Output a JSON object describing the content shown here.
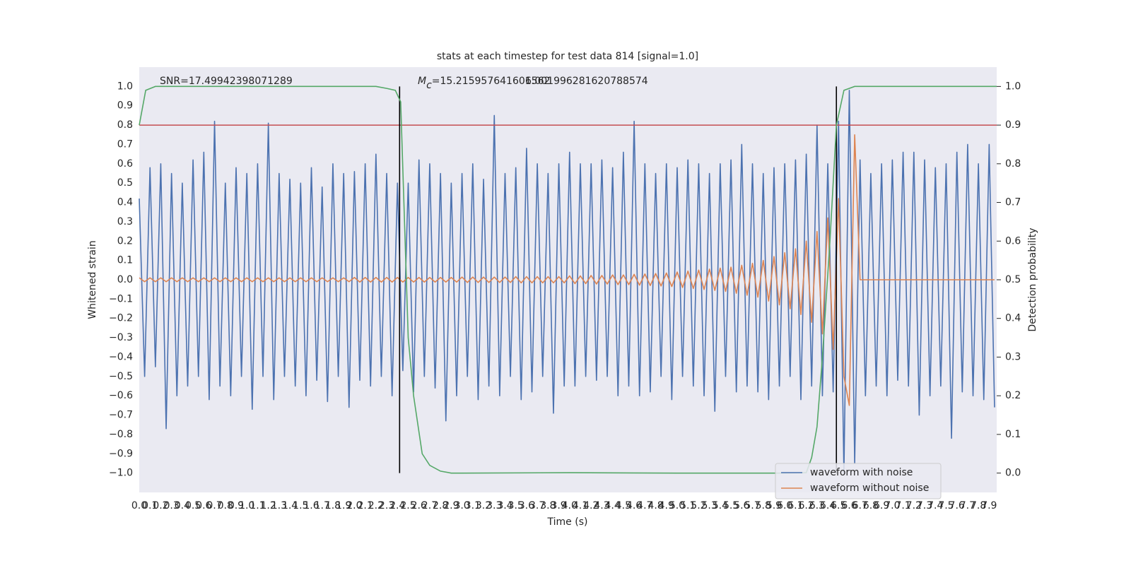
{
  "chart_data": {
    "type": "line",
    "title": "stats at each timestep for test data 814 [signal=1.0]",
    "xlabel": "Time (s)",
    "ylabel": "Whitened strain",
    "y2label": "Detection probability",
    "annotations": [
      {
        "text": "SNR=17.49942398071289"
      },
      {
        "symbol": "M",
        "subscript": "c",
        "text": "=15.215957641601562"
      },
      {
        "text": "6.001996281620788574"
      }
    ],
    "xlim": [
      0,
      7.97
    ],
    "ylim": [
      -1.1,
      1.1
    ],
    "y2lim": [
      -0.05,
      1.05
    ],
    "grid": true,
    "legend": "lower right",
    "xticks": [
      {
        "value": 0,
        "label": "0.0"
      },
      0.1,
      0.2,
      0.3,
      0.4,
      0.5,
      0.6,
      0.7,
      0.8,
      0.9,
      {
        "value": 1,
        "label": "1.0"
      },
      1.1,
      1.2,
      1.3,
      1.4,
      1.5,
      1.6,
      1.7,
      1.8,
      1.9,
      {
        "value": 2,
        "label": "2.0"
      },
      2.1,
      2.2,
      2.3,
      2.4,
      2.5,
      2.6,
      2.7,
      2.8,
      2.9,
      {
        "value": 3,
        "label": "3.0"
      },
      3.1,
      3.2,
      3.3,
      3.4,
      3.5,
      3.6,
      3.7,
      3.8,
      3.9,
      {
        "value": 4,
        "label": "4.0"
      },
      4.1,
      4.2,
      4.3,
      4.4,
      4.5,
      4.6,
      4.7,
      4.8,
      4.9,
      {
        "value": 5,
        "label": "5.0"
      },
      5.1,
      5.2,
      5.3,
      5.4,
      5.5,
      5.6,
      5.7,
      5.8,
      5.9,
      {
        "value": 6,
        "label": "6.0"
      },
      6.1,
      6.2,
      6.3,
      6.4,
      6.5,
      6.6,
      6.7,
      6.8,
      6.9,
      {
        "value": 7,
        "label": "7.0"
      },
      7.1,
      7.2,
      7.3,
      7.4,
      7.5,
      7.6,
      7.7,
      7.8,
      7.9
    ],
    "yticks": [
      {
        "value": -1,
        "label": "−1.0"
      },
      {
        "value": -0.9,
        "label": "−0.9"
      },
      {
        "value": -0.8,
        "label": "−0.8"
      },
      {
        "value": -0.7,
        "label": "−0.7"
      },
      {
        "value": -0.6,
        "label": "−0.6"
      },
      {
        "value": -0.5,
        "label": "−0.5"
      },
      {
        "value": -0.4,
        "label": "−0.4"
      },
      {
        "value": -0.3,
        "label": "−0.3"
      },
      {
        "value": -0.2,
        "label": "−0.2"
      },
      {
        "value": -0.1,
        "label": "−0.1"
      },
      {
        "value": 0,
        "label": "0.0"
      },
      0.1,
      0.2,
      0.3,
      0.4,
      0.5,
      0.6,
      0.7,
      0.8,
      0.9,
      {
        "value": 1,
        "label": "1.0"
      }
    ],
    "y2ticks": [
      {
        "value": 0,
        "label": "0.0"
      },
      0.1,
      0.2,
      0.3,
      0.4,
      0.5,
      0.6,
      0.7,
      0.8,
      0.9,
      {
        "value": 1,
        "label": "1.0"
      }
    ],
    "x": [
      0,
      0.05,
      0.1,
      0.15,
      0.2,
      0.25,
      0.3,
      0.35,
      0.4,
      0.45,
      0.5,
      0.55,
      0.6,
      0.65,
      0.7,
      0.75,
      0.8,
      0.85,
      0.9,
      0.95,
      1,
      1.05,
      1.1,
      1.15,
      1.2,
      1.25,
      1.3,
      1.35,
      1.4,
      1.45,
      1.5,
      1.55,
      1.6,
      1.65,
      1.7,
      1.75,
      1.8,
      1.85,
      1.9,
      1.95,
      2,
      2.05,
      2.1,
      2.15,
      2.2,
      2.25,
      2.3,
      2.35,
      2.4,
      2.45,
      2.5,
      2.55,
      2.6,
      2.65,
      2.7,
      2.75,
      2.8,
      2.85,
      2.9,
      2.95,
      3,
      3.05,
      3.1,
      3.15,
      3.2,
      3.25,
      3.3,
      3.35,
      3.4,
      3.45,
      3.5,
      3.55,
      3.6,
      3.65,
      3.7,
      3.75,
      3.8,
      3.85,
      3.9,
      3.95,
      4,
      4.05,
      4.1,
      4.15,
      4.2,
      4.25,
      4.3,
      4.35,
      4.4,
      4.45,
      4.5,
      4.55,
      4.6,
      4.65,
      4.7,
      4.75,
      4.8,
      4.85,
      4.9,
      4.95,
      5,
      5.05,
      5.1,
      5.15,
      5.2,
      5.25,
      5.3,
      5.35,
      5.4,
      5.45,
      5.5,
      5.55,
      5.6,
      5.65,
      5.7,
      5.75,
      5.8,
      5.85,
      5.9,
      5.95,
      6,
      6.05,
      6.1,
      6.15,
      6.2,
      6.25,
      6.3,
      6.35,
      6.4,
      6.45,
      6.5,
      6.55,
      6.6,
      6.65,
      6.7,
      6.75,
      6.8,
      6.85,
      6.9,
      6.95,
      7,
      7.05,
      7.1,
      7.15,
      7.2,
      7.25,
      7.3,
      7.35,
      7.4,
      7.45,
      7.5,
      7.55,
      7.6,
      7.65,
      7.7,
      7.75,
      7.8,
      7.85,
      7.9,
      7.95
    ],
    "series": [
      {
        "name": "waveform with noise",
        "color": "#4c72b0",
        "values": [
          0.42,
          -0.5,
          0.58,
          -0.45,
          0.6,
          -0.77,
          0.55,
          -0.6,
          0.5,
          -0.55,
          0.62,
          -0.5,
          0.66,
          -0.62,
          0.82,
          -0.55,
          0.5,
          -0.6,
          0.58,
          -0.5,
          0.55,
          -0.67,
          0.6,
          -0.5,
          0.81,
          -0.62,
          0.55,
          -0.5,
          0.52,
          -0.55,
          0.5,
          -0.6,
          0.58,
          -0.52,
          0.48,
          -0.63,
          0.6,
          -0.5,
          0.55,
          -0.66,
          0.56,
          -0.52,
          0.6,
          -0.55,
          0.65,
          -0.5,
          0.55,
          -0.6,
          0.5,
          -0.47,
          0.5,
          -0.58,
          0.62,
          -0.5,
          0.6,
          -0.56,
          0.55,
          -0.73,
          0.5,
          -0.6,
          0.55,
          -0.5,
          0.6,
          -0.62,
          0.52,
          -0.55,
          0.85,
          -0.6,
          0.55,
          -0.5,
          0.58,
          -0.62,
          0.68,
          -0.58,
          0.6,
          -0.5,
          0.55,
          -0.69,
          0.6,
          -0.55,
          0.66,
          -0.55,
          0.6,
          -0.5,
          0.6,
          -0.52,
          0.62,
          -0.5,
          0.58,
          -0.6,
          0.66,
          -0.55,
          0.82,
          -0.6,
          0.6,
          -0.58,
          0.55,
          -0.5,
          0.6,
          -0.62,
          0.58,
          -0.5,
          0.62,
          -0.55,
          0.6,
          -0.6,
          0.55,
          -0.68,
          0.6,
          -0.5,
          0.62,
          -0.58,
          0.7,
          -0.55,
          0.6,
          -0.58,
          0.55,
          -0.62,
          0.58,
          -0.55,
          0.6,
          -0.5,
          0.62,
          -0.62,
          0.65,
          -0.55,
          0.8,
          -0.6,
          0.6,
          -0.58,
          0.82,
          -1.0,
          0.98,
          -0.95,
          0.62,
          -0.6,
          0.55,
          -0.55,
          0.6,
          -0.6,
          0.62,
          -0.52,
          0.66,
          -0.55,
          0.66,
          -0.7,
          0.62,
          -0.6,
          0.58,
          -0.55,
          0.6,
          -0.82,
          0.66,
          -0.58,
          0.7,
          -0.6,
          0.6,
          -0.62,
          0.7,
          -0.66
        ]
      },
      {
        "name": "waveform without noise",
        "color": "#dd8452",
        "values": [
          0.01,
          -0.01,
          0.01,
          -0.01,
          0.01,
          -0.01,
          0.01,
          -0.01,
          0.01,
          -0.01,
          0.01,
          -0.01,
          0.01,
          -0.01,
          0.01,
          -0.01,
          0.01,
          -0.01,
          0.01,
          -0.01,
          0.01,
          -0.01,
          0.01,
          -0.01,
          0.01,
          -0.01,
          0.01,
          -0.01,
          0.01,
          -0.01,
          0.01,
          -0.01,
          0.01,
          -0.01,
          0.01,
          -0.01,
          0.01,
          -0.01,
          0.01,
          -0.01,
          0.012,
          -0.012,
          0.012,
          -0.012,
          0.012,
          -0.012,
          0.012,
          -0.012,
          0.012,
          -0.012,
          0.012,
          -0.012,
          0.012,
          -0.012,
          0.012,
          -0.012,
          0.012,
          -0.012,
          0.012,
          -0.012,
          0.014,
          -0.014,
          0.014,
          -0.014,
          0.014,
          -0.014,
          0.014,
          -0.014,
          0.014,
          -0.014,
          0.016,
          -0.016,
          0.016,
          -0.016,
          0.016,
          -0.016,
          0.016,
          -0.016,
          0.016,
          -0.016,
          0.02,
          -0.02,
          0.02,
          -0.02,
          0.022,
          -0.022,
          0.022,
          -0.022,
          0.025,
          -0.025,
          0.025,
          -0.025,
          0.028,
          -0.028,
          0.03,
          -0.03,
          0.032,
          -0.032,
          0.035,
          -0.035,
          0.04,
          -0.04,
          0.045,
          -0.045,
          0.05,
          -0.05,
          0.055,
          -0.055,
          0.06,
          -0.06,
          0.065,
          -0.07,
          0.075,
          -0.08,
          0.085,
          -0.09,
          0.1,
          -0.11,
          0.12,
          -0.13,
          0.14,
          -0.15,
          0.16,
          -0.18,
          0.2,
          -0.22,
          0.25,
          -0.28,
          0.32,
          -0.36,
          0.42,
          -0.5,
          -0.65,
          0.75,
          0,
          0,
          0,
          0,
          0,
          0,
          0,
          0,
          0,
          0,
          0,
          0,
          0,
          0,
          0,
          0,
          0,
          0,
          0,
          0,
          0,
          0,
          0,
          0,
          0,
          0
        ]
      }
    ],
    "probability": {
      "color": "#55a868",
      "axis": "y2",
      "x": [
        0,
        0.06,
        0.15,
        0.5,
        1,
        1.5,
        2,
        2.2,
        2.3,
        2.38,
        2.43,
        2.5,
        2.55,
        2.63,
        2.7,
        2.8,
        2.9,
        3,
        4,
        5,
        6,
        6.2,
        6.25,
        6.3,
        6.35,
        6.42,
        6.48,
        6.55,
        6.65,
        7,
        7.5,
        7.97
      ],
      "values": [
        0.9,
        0.99,
        1,
        1,
        1,
        1,
        1,
        1,
        0.995,
        0.99,
        0.96,
        0.35,
        0.2,
        0.05,
        0.02,
        0.005,
        0,
        0,
        0.001,
        0,
        0,
        0.001,
        0.04,
        0.12,
        0.3,
        0.6,
        0.9,
        0.99,
        1,
        1,
        1,
        1
      ]
    },
    "threshold": {
      "value": 0.9,
      "axis": "y2",
      "color": "#c44e52"
    },
    "vlines": {
      "x": [
        2.42,
        6.48
      ],
      "color": "#000000"
    }
  }
}
